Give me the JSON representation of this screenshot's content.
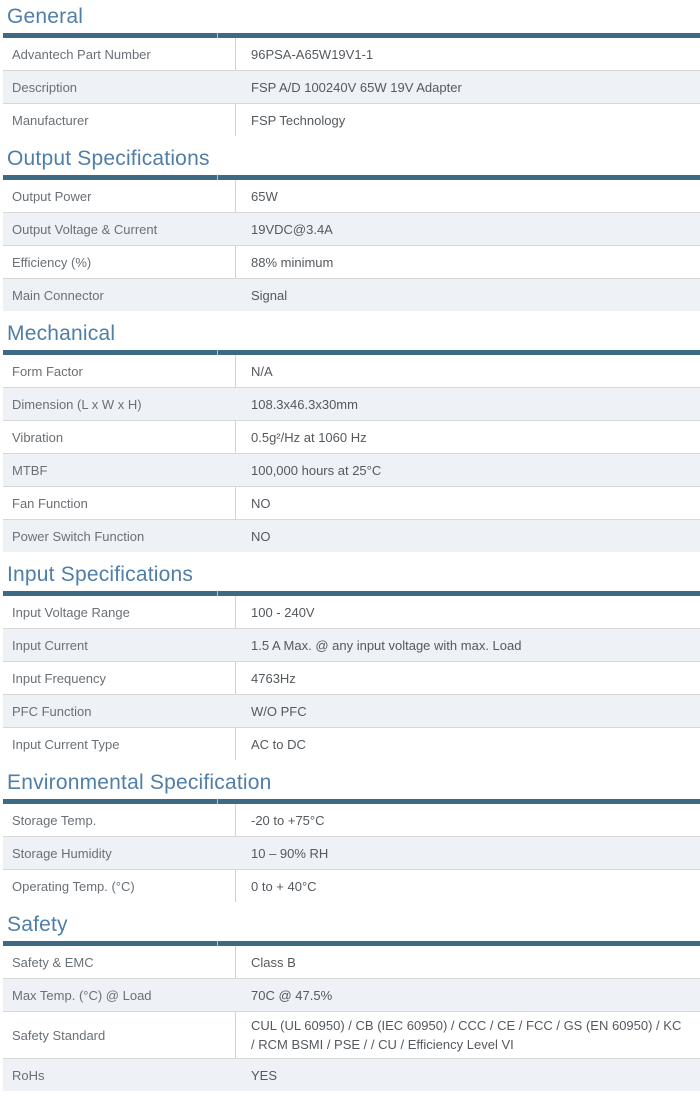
{
  "colors": {
    "heading_text": "#4f7ea9",
    "title_bar": "#3d6984",
    "row_shade": "#eef2f7",
    "label_text": "#6a7076",
    "value_text": "#54595e"
  },
  "sections": [
    {
      "title": "General",
      "rows": [
        {
          "label": "Advantech Part Number",
          "value": "96PSA-A65W19V1-1"
        },
        {
          "label": "Description",
          "value": "FSP A/D 100240V 65W 19V Adapter"
        },
        {
          "label": "Manufacturer",
          "value": "FSP Technology"
        }
      ]
    },
    {
      "title": "Output Specifications",
      "rows": [
        {
          "label": "Output Power",
          "value": "65W"
        },
        {
          "label": "Output Voltage & Current",
          "value": "19VDC@3.4A"
        },
        {
          "label": "Efficiency (%)",
          "value": "88% minimum"
        },
        {
          "label": "Main Connector",
          "value": "Signal"
        }
      ]
    },
    {
      "title": "Mechanical",
      "rows": [
        {
          "label": "Form Factor",
          "value": "N/A"
        },
        {
          "label": "Dimension (L x W x H)",
          "value": "108.3x46.3x30mm"
        },
        {
          "label": "Vibration",
          "value": "0.5g²/Hz at 1060 Hz"
        },
        {
          "label": "MTBF",
          "value": "100,000 hours at 25°C"
        },
        {
          "label": "Fan Function",
          "value": "NO"
        },
        {
          "label": "Power Switch Function",
          "value": "NO"
        }
      ]
    },
    {
      "title": "Input Specifications",
      "rows": [
        {
          "label": "Input Voltage Range",
          "value": "100 - 240V"
        },
        {
          "label": "Input Current",
          "value": "1.5 A Max. @ any input voltage with max. Load"
        },
        {
          "label": "Input Frequency",
          "value": "4763Hz"
        },
        {
          "label": "PFC Function",
          "value": "W/O PFC"
        },
        {
          "label": "Input Current Type",
          "value": "AC to DC"
        }
      ]
    },
    {
      "title": "Environmental Specification",
      "rows": [
        {
          "label": "Storage Temp.",
          "value": "-20 to +75°C"
        },
        {
          "label": "Storage Humidity",
          "value": "10 – 90% RH"
        },
        {
          "label": "Operating Temp. (°C)",
          "value": "0 to + 40°C"
        }
      ]
    },
    {
      "title": "Safety",
      "rows": [
        {
          "label": "Safety & EMC",
          "value": "Class B"
        },
        {
          "label": "Max Temp. (°C) @ Load",
          "value": "70C @ 47.5%"
        },
        {
          "label": "Safety Standard",
          "value": "CUL (UL 60950) / CB (IEC 60950) / CCC / CE / FCC / GS (EN 60950) / KC / RCM BSMI / PSE / / CU / Efficiency Level VI"
        },
        {
          "label": "RoHs",
          "value": "YES"
        }
      ]
    }
  ]
}
